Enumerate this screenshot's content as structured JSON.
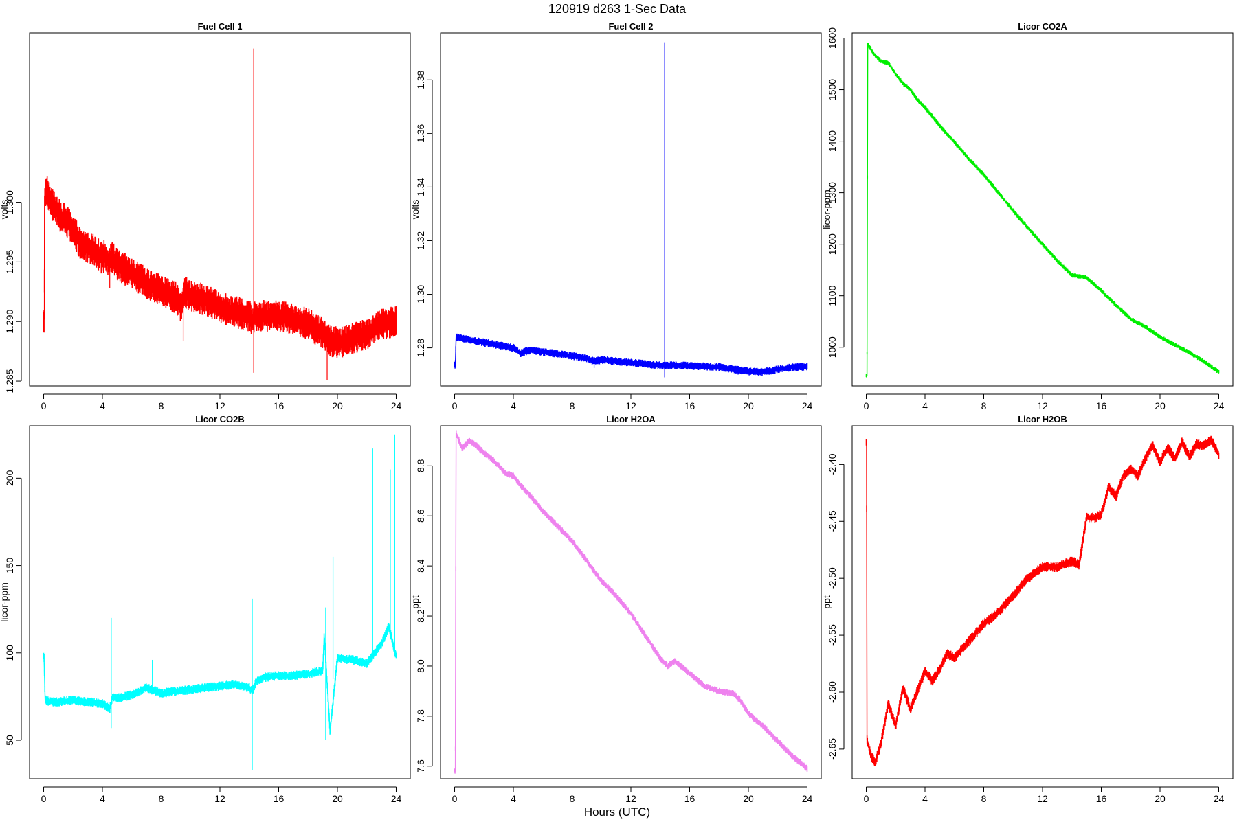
{
  "figure": {
    "title": "120919   d263   1-Sec Data",
    "xlabel": "Hours (UTC)"
  },
  "chart_data": [
    {
      "type": "line",
      "title": "Fuel Cell 1",
      "ylabel": "volts",
      "color": "#ff0000",
      "xlim": [
        -0.96,
        24.96
      ],
      "ylim": [
        1.2846,
        1.3142
      ],
      "xticks": [
        0,
        4,
        8,
        12,
        16,
        20,
        24
      ],
      "yticks": [
        1.285,
        1.29,
        1.295,
        1.3
      ],
      "ytick_labels": [
        "1.285",
        "1.290",
        "1.295",
        "1.300"
      ],
      "noise": 0.0009,
      "x": [
        0,
        0.05,
        0.06,
        0.2,
        0.5,
        1.0,
        1.5,
        2.0,
        2.5,
        3.0,
        3.5,
        4.0,
        4.1,
        4.5,
        4.6,
        5.0,
        6.0,
        7.0,
        8.0,
        9.0,
        9.4,
        9.6,
        10,
        11,
        12,
        13,
        14,
        14.25,
        14.3,
        14.35,
        15,
        16,
        17,
        18,
        19,
        19.3,
        20,
        21,
        22,
        23,
        24
      ],
      "y": [
        1.2902,
        1.2902,
        1.3005,
        1.301,
        1.3,
        1.299,
        1.2985,
        1.2978,
        1.2965,
        1.2962,
        1.296,
        1.2952,
        1.2955,
        1.295,
        1.2955,
        1.2948,
        1.294,
        1.2932,
        1.2926,
        1.292,
        1.2912,
        1.2925,
        1.2922,
        1.2918,
        1.2912,
        1.2908,
        1.2905,
        1.29,
        1.29,
        1.2905,
        1.2905,
        1.2905,
        1.2902,
        1.2898,
        1.289,
        1.2885,
        1.2882,
        1.2885,
        1.289,
        1.2898,
        1.29
      ],
      "spikes": [
        {
          "x": 14.3,
          "y0": 1.2857,
          "y1": 1.3129
        },
        {
          "x": 19.3,
          "y0": 1.2851,
          "y1": 1.2885
        },
        {
          "x": 9.5,
          "y0": 1.2884,
          "y1": 1.2915
        },
        {
          "x": 4.5,
          "y0": 1.2928,
          "y1": 1.295
        }
      ]
    },
    {
      "type": "line",
      "title": "Fuel Cell 2",
      "ylabel": "volts",
      "color": "#0000ff",
      "xlim": [
        -0.96,
        24.96
      ],
      "ylim": [
        1.2658,
        1.3975
      ],
      "xticks": [
        0,
        4,
        8,
        12,
        16,
        20,
        24
      ],
      "yticks": [
        1.28,
        1.3,
        1.32,
        1.34,
        1.36,
        1.38
      ],
      "ytick_labels": [
        "1.28",
        "1.30",
        "1.32",
        "1.34",
        "1.36",
        "1.38"
      ],
      "noise": 0.001,
      "x": [
        0,
        0.05,
        0.1,
        1,
        2,
        3,
        4,
        4.5,
        5,
        6,
        8,
        9,
        9.5,
        10,
        12,
        14,
        14.3,
        15,
        16,
        18,
        19,
        20,
        21,
        22,
        23,
        24
      ],
      "y": [
        1.2735,
        1.2735,
        1.284,
        1.283,
        1.282,
        1.281,
        1.28,
        1.278,
        1.279,
        1.2785,
        1.277,
        1.276,
        1.275,
        1.2755,
        1.2745,
        1.2735,
        1.2735,
        1.2735,
        1.2733,
        1.2728,
        1.272,
        1.2712,
        1.271,
        1.272,
        1.2728,
        1.273
      ],
      "spikes": [
        {
          "x": 14.3,
          "y0": 1.269,
          "y1": 1.394
        },
        {
          "x": 19.3,
          "y0": 1.27,
          "y1": 1.2725
        },
        {
          "x": 9.5,
          "y0": 1.2725,
          "y1": 1.2755
        }
      ]
    },
    {
      "type": "line",
      "title": "Licor CO2A",
      "ylabel": "licor-ppm",
      "color": "#00ee00",
      "xlim": [
        -0.96,
        24.96
      ],
      "ylim": [
        925,
        1610
      ],
      "xticks": [
        0,
        4,
        8,
        12,
        16,
        20,
        24
      ],
      "yticks": [
        1000,
        1100,
        1200,
        1300,
        1400,
        1500,
        1600
      ],
      "ytick_labels": [
        "1000",
        "1100",
        "1200",
        "1300",
        "1400",
        "1500",
        "1600"
      ],
      "noise": 3,
      "x": [
        0,
        0.05,
        0.1,
        0.5,
        1.0,
        1.5,
        2.0,
        2.5,
        3.0,
        3.5,
        4.0,
        4.5,
        5.0,
        6.0,
        7.0,
        8.0,
        9.0,
        10,
        11,
        12,
        13,
        14,
        15,
        16,
        17,
        18,
        19,
        20,
        21,
        22,
        23,
        24
      ],
      "y": [
        945,
        945,
        1588,
        1570,
        1555,
        1552,
        1530,
        1512,
        1500,
        1480,
        1465,
        1448,
        1430,
        1398,
        1365,
        1335,
        1300,
        1265,
        1232,
        1200,
        1168,
        1140,
        1135,
        1110,
        1082,
        1055,
        1040,
        1020,
        1005,
        990,
        972,
        952
      ]
    },
    {
      "type": "line",
      "title": "Licor CO2B",
      "ylabel": "licor-ppm",
      "color": "#00ffff",
      "xlim": [
        -0.96,
        24.96
      ],
      "ylim": [
        28,
        230
      ],
      "xticks": [
        0,
        4,
        8,
        12,
        16,
        20,
        24
      ],
      "yticks": [
        50,
        100,
        150,
        200
      ],
      "ytick_labels": [
        "50",
        "100",
        "150",
        "200"
      ],
      "noise": 1.8,
      "x": [
        0,
        0.02,
        0.1,
        0.5,
        1,
        2,
        3,
        4,
        4.5,
        4.7,
        5,
        6,
        7,
        8,
        9,
        10,
        11,
        12,
        13,
        14,
        14.2,
        14.5,
        15,
        16,
        17,
        18,
        19,
        19.1,
        19.5,
        20,
        21,
        22,
        23,
        23.5,
        24
      ],
      "y": [
        99,
        99,
        73,
        72,
        72,
        73,
        72,
        71,
        68,
        75,
        74,
        76,
        80,
        77,
        78,
        79,
        80,
        81,
        82,
        80,
        78,
        84,
        86,
        87,
        87,
        88,
        90,
        110,
        55,
        97,
        96,
        94,
        105,
        115,
        98
      ],
      "spikes": [
        {
          "x": 14.2,
          "y0": 33,
          "y1": 131
        },
        {
          "x": 4.6,
          "y0": 57,
          "y1": 120
        },
        {
          "x": 19.2,
          "y0": 50,
          "y1": 126
        },
        {
          "x": 19.7,
          "y0": 85,
          "y1": 155
        },
        {
          "x": 22.4,
          "y0": 100,
          "y1": 217
        },
        {
          "x": 23.9,
          "y0": 98,
          "y1": 225
        },
        {
          "x": 23.6,
          "y0": 110,
          "y1": 205
        },
        {
          "x": 7.4,
          "y0": 78,
          "y1": 96
        }
      ]
    },
    {
      "type": "line",
      "title": "Licor H2OA",
      "ylabel": "ppt",
      "color": "#ee82ee",
      "xlim": [
        -0.96,
        24.96
      ],
      "ylim": [
        7.55,
        8.96
      ],
      "xticks": [
        0,
        4,
        8,
        12,
        16,
        20,
        24
      ],
      "yticks": [
        7.6,
        7.8,
        8.0,
        8.2,
        8.4,
        8.6,
        8.8
      ],
      "ytick_labels": [
        "7.6",
        "7.8",
        "8.0",
        "8.2",
        "8.4",
        "8.6",
        "8.8"
      ],
      "noise": 0.009,
      "x": [
        0,
        0.05,
        0.1,
        0.5,
        1.0,
        1.5,
        2.0,
        2.5,
        3.0,
        3.5,
        4.0,
        4.5,
        5.0,
        6.0,
        7.0,
        8.0,
        9.0,
        10,
        11,
        12,
        13,
        14,
        14.5,
        15,
        16,
        17,
        18,
        19,
        19.5,
        20,
        21,
        22,
        23,
        24
      ],
      "y": [
        7.58,
        7.58,
        8.93,
        8.87,
        8.9,
        8.88,
        8.85,
        8.83,
        8.8,
        8.77,
        8.76,
        8.72,
        8.69,
        8.62,
        8.56,
        8.5,
        8.42,
        8.34,
        8.28,
        8.21,
        8.12,
        8.03,
        8.0,
        8.02,
        7.97,
        7.92,
        7.9,
        7.89,
        7.86,
        7.81,
        7.76,
        7.7,
        7.64,
        7.59
      ]
    },
    {
      "type": "line",
      "title": "Licor H2OB",
      "ylabel": "ppt",
      "color": "#ff0000",
      "xlim": [
        -0.96,
        24.96
      ],
      "ylim": [
        -2.676,
        -2.366
      ],
      "xticks": [
        0,
        4,
        8,
        12,
        16,
        20,
        24
      ],
      "yticks": [
        -2.65,
        -2.6,
        -2.55,
        -2.5,
        -2.45,
        -2.4
      ],
      "ytick_labels": [
        "-2.65",
        "-2.60",
        "-2.55",
        "-2.50",
        "-2.45",
        "-2.40"
      ],
      "noise": 0.003,
      "x": [
        0,
        0.02,
        0.05,
        0.3,
        0.6,
        1.0,
        1.5,
        2.0,
        2.5,
        3.0,
        3.5,
        4.0,
        4.5,
        5.0,
        5.5,
        6.0,
        7.0,
        8.0,
        9.0,
        10,
        11,
        12,
        13,
        14,
        14.5,
        15,
        15.5,
        16,
        16.5,
        17,
        17.5,
        18,
        18.5,
        19,
        19.5,
        20,
        20.5,
        21,
        21.5,
        22,
        22.5,
        23,
        23.5,
        24
      ],
      "y": [
        -2.38,
        -2.38,
        -2.642,
        -2.655,
        -2.662,
        -2.645,
        -2.61,
        -2.63,
        -2.596,
        -2.615,
        -2.598,
        -2.582,
        -2.59,
        -2.58,
        -2.566,
        -2.57,
        -2.555,
        -2.54,
        -2.53,
        -2.515,
        -2.5,
        -2.49,
        -2.49,
        -2.485,
        -2.488,
        -2.446,
        -2.447,
        -2.444,
        -2.42,
        -2.428,
        -2.41,
        -2.404,
        -2.41,
        -2.395,
        -2.383,
        -2.398,
        -2.385,
        -2.395,
        -2.38,
        -2.393,
        -2.382,
        -2.383,
        -2.378,
        -2.392
      ]
    }
  ]
}
